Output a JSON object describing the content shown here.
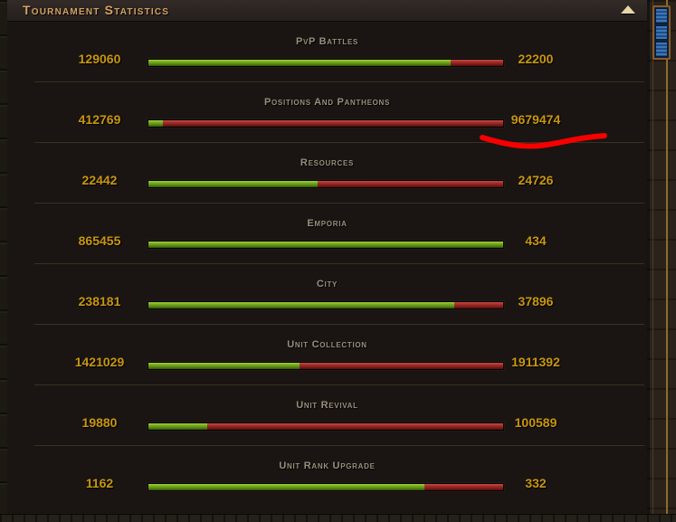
{
  "panel": {
    "title": "Tournament Statistics"
  },
  "scrollbar": {
    "up_arrow_icon": "triangle-up"
  },
  "stats": {
    "rows": [
      {
        "category": "PvP Battles",
        "left_value": 129060,
        "right_value": 22200
      },
      {
        "category": "Positions And Pantheons",
        "left_value": 412769,
        "right_value": 9679474,
        "annotated": true
      },
      {
        "category": "Resources",
        "left_value": 22442,
        "right_value": 24726
      },
      {
        "category": "Emporia",
        "left_value": 865455,
        "right_value": 434
      },
      {
        "category": "City",
        "left_value": 238181,
        "right_value": 37896
      },
      {
        "category": "Unit Collection",
        "left_value": 1421029,
        "right_value": 1911392
      },
      {
        "category": "Unit Revival",
        "left_value": 19880,
        "right_value": 100589
      },
      {
        "category": "Unit Rank Upgrade",
        "left_value": 1162,
        "right_value": 332
      }
    ],
    "bar_colors": {
      "left_fill": "#6faf1f",
      "right_fill": "#9c2b27"
    }
  },
  "annotation": {
    "type": "hand-drawn-underline",
    "target_value": "9679474",
    "color": "#f60000"
  },
  "colors": {
    "panel_bg": "#1a1512",
    "header_title": "#d4a263",
    "category_label": "#998e7c",
    "gold_value": "#c89612",
    "scroll_arrow": "#e7d7a6"
  }
}
